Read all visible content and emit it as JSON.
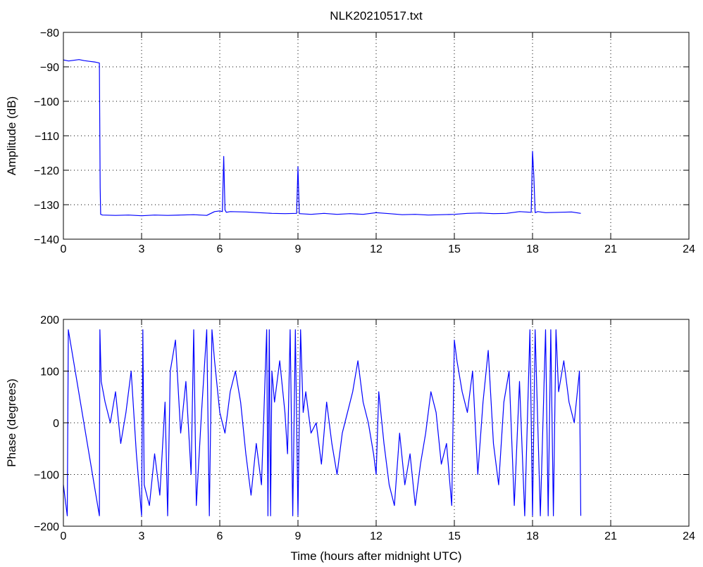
{
  "chart_data": [
    {
      "type": "line",
      "title": "NLK20210517.txt",
      "xlabel": "",
      "ylabel": "Amplitude (dB)",
      "xlim": [
        0,
        24
      ],
      "ylim": [
        -140,
        -80
      ],
      "xticks": [
        "0",
        "3",
        "6",
        "9",
        "12",
        "15",
        "18",
        "21",
        "24"
      ],
      "yticks": [
        "−80",
        "−90",
        "−100",
        "−110",
        "−120",
        "−130",
        "−140"
      ],
      "grid": true,
      "line_color": "#0000ff",
      "x": [
        0.0,
        0.2,
        0.4,
        0.6,
        0.8,
        1.0,
        1.2,
        1.38,
        1.41,
        1.43,
        1.5,
        2.0,
        2.5,
        3.0,
        3.5,
        4.0,
        4.5,
        5.0,
        5.5,
        5.8,
        6.0,
        6.1,
        6.15,
        6.2,
        6.25,
        6.4,
        7.0,
        7.5,
        8.0,
        8.5,
        8.95,
        9.0,
        9.05,
        9.5,
        10.0,
        10.5,
        11.0,
        11.5,
        12.0,
        12.5,
        13.0,
        13.5,
        14.0,
        14.5,
        15.0,
        15.5,
        16.0,
        16.5,
        17.0,
        17.5,
        17.95,
        18.0,
        18.05,
        18.1,
        18.2,
        18.5,
        19.0,
        19.5,
        19.85
      ],
      "y": [
        -88,
        -88.3,
        -88.1,
        -87.9,
        -88.2,
        -88.4,
        -88.6,
        -88.9,
        -125,
        -132.8,
        -133.0,
        -133.1,
        -133.0,
        -133.2,
        -133.0,
        -133.1,
        -133.0,
        -132.9,
        -133.1,
        -132.0,
        -131.8,
        -132.0,
        -116,
        -131.5,
        -132.2,
        -132.0,
        -132.1,
        -132.3,
        -132.5,
        -132.6,
        -132.5,
        -119,
        -132.6,
        -132.8,
        -132.5,
        -132.8,
        -132.6,
        -132.8,
        -132.3,
        -132.6,
        -132.9,
        -132.8,
        -133.0,
        -132.9,
        -132.8,
        -132.5,
        -132.4,
        -132.6,
        -132.5,
        -132.0,
        -132.2,
        -114.5,
        -122,
        -132.3,
        -132.0,
        -132.3,
        -132.2,
        -132.1,
        -132.5
      ]
    },
    {
      "type": "line",
      "title": "",
      "xlabel": "Time (hours after midnight UTC)",
      "ylabel": "Phase (degrees)",
      "xlim": [
        0,
        24
      ],
      "ylim": [
        -200,
        200
      ],
      "xticks": [
        "0",
        "3",
        "6",
        "9",
        "12",
        "15",
        "18",
        "21",
        "24"
      ],
      "yticks": [
        "200",
        "100",
        "0",
        "−100",
        "−200"
      ],
      "grid": true,
      "line_color": "#0000ff",
      "x": [
        0.0,
        0.15,
        0.19,
        1.38,
        1.4,
        1.45,
        1.6,
        1.8,
        2.0,
        2.2,
        2.4,
        2.6,
        2.8,
        3.0,
        3.05,
        3.1,
        3.3,
        3.5,
        3.7,
        3.9,
        4.0,
        4.1,
        4.3,
        4.5,
        4.7,
        4.9,
        5.0,
        5.1,
        5.3,
        5.5,
        5.6,
        5.7,
        5.8,
        6.0,
        6.2,
        6.4,
        6.6,
        6.8,
        7.0,
        7.2,
        7.4,
        7.6,
        7.8,
        7.85,
        7.9,
        7.95,
        8.0,
        8.1,
        8.3,
        8.5,
        8.6,
        8.7,
        8.8,
        8.9,
        9.0,
        9.1,
        9.2,
        9.3,
        9.5,
        9.7,
        9.9,
        10.1,
        10.3,
        10.5,
        10.7,
        10.9,
        11.1,
        11.3,
        11.5,
        11.7,
        11.9,
        12.0,
        12.1,
        12.3,
        12.5,
        12.7,
        12.9,
        13.1,
        13.3,
        13.5,
        13.7,
        13.9,
        14.1,
        14.3,
        14.5,
        14.7,
        14.9,
        15.0,
        15.1,
        15.3,
        15.5,
        15.7,
        15.9,
        16.1,
        16.3,
        16.5,
        16.7,
        16.9,
        17.1,
        17.3,
        17.5,
        17.7,
        17.9,
        18.0,
        18.1,
        18.3,
        18.5,
        18.6,
        18.7,
        18.8,
        18.9,
        19.0,
        19.2,
        19.4,
        19.6,
        19.8,
        19.85
      ],
      "y": [
        -120,
        -180,
        180,
        -180,
        180,
        80,
        40,
        0,
        60,
        -40,
        20,
        100,
        -60,
        -180,
        180,
        -120,
        -160,
        -60,
        -140,
        40,
        -180,
        100,
        160,
        -20,
        80,
        -100,
        180,
        -160,
        20,
        180,
        -180,
        180,
        120,
        20,
        -20,
        60,
        100,
        40,
        -60,
        -140,
        -40,
        -120,
        180,
        -180,
        180,
        -180,
        100,
        40,
        120,
        20,
        -60,
        180,
        -180,
        180,
        -180,
        180,
        20,
        60,
        -20,
        0,
        -80,
        40,
        -40,
        -100,
        -20,
        20,
        60,
        120,
        40,
        0,
        -60,
        -100,
        60,
        -40,
        -120,
        -160,
        -20,
        -120,
        -60,
        -160,
        -80,
        -20,
        60,
        20,
        -80,
        -40,
        -160,
        160,
        120,
        60,
        20,
        100,
        -100,
        40,
        140,
        -40,
        -120,
        40,
        100,
        -160,
        80,
        -180,
        180,
        -180,
        180,
        -180,
        180,
        -180,
        180,
        -180,
        180,
        60,
        120,
        40,
        0,
        100,
        -180
      ]
    }
  ]
}
